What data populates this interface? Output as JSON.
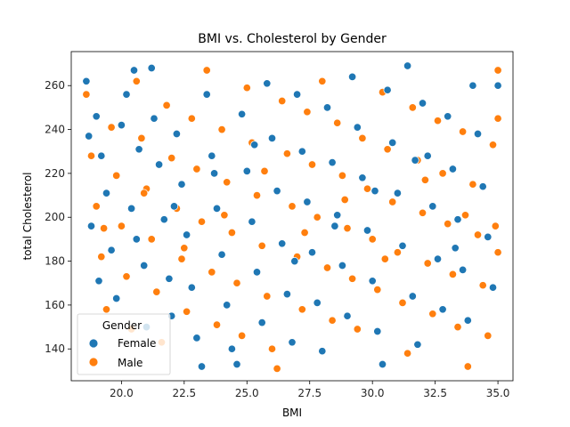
{
  "chart_data": {
    "type": "scatter",
    "title": "BMI vs. Cholesterol by Gender",
    "xlabel": "BMI",
    "ylabel": "total Cholesterol",
    "xlim": [
      18.0,
      35.6
    ],
    "ylim": [
      125.5,
      275.5
    ],
    "xticks": [
      20.0,
      22.5,
      25.0,
      27.5,
      30.0,
      32.5,
      35.0
    ],
    "xtick_labels": [
      "20.0",
      "22.5",
      "25.0",
      "27.5",
      "30.0",
      "32.5",
      "35.0"
    ],
    "yticks": [
      140,
      160,
      180,
      200,
      220,
      240,
      260
    ],
    "ytick_labels": [
      "140",
      "160",
      "180",
      "200",
      "220",
      "240",
      "260"
    ],
    "grid": false,
    "legend": {
      "title": "Gender",
      "position": "lower-left",
      "entries": [
        "Female",
        "Male"
      ]
    },
    "series": [
      {
        "name": "Female",
        "color": "#1f77b4",
        "points": [
          [
            18.6,
            262
          ],
          [
            18.7,
            237
          ],
          [
            18.8,
            196
          ],
          [
            19.0,
            246
          ],
          [
            19.2,
            228
          ],
          [
            19.4,
            211
          ],
          [
            19.6,
            185
          ],
          [
            19.8,
            163
          ],
          [
            20.0,
            242
          ],
          [
            20.2,
            256
          ],
          [
            20.4,
            204
          ],
          [
            20.5,
            267
          ],
          [
            20.7,
            231
          ],
          [
            20.9,
            178
          ],
          [
            21.0,
            150
          ],
          [
            21.2,
            268
          ],
          [
            21.3,
            245
          ],
          [
            21.5,
            224
          ],
          [
            21.7,
            199
          ],
          [
            21.9,
            172
          ],
          [
            22.0,
            155
          ],
          [
            22.2,
            238
          ],
          [
            22.4,
            215
          ],
          [
            22.6,
            192
          ],
          [
            22.8,
            168
          ],
          [
            23.0,
            145
          ],
          [
            23.2,
            132
          ],
          [
            23.4,
            256
          ],
          [
            23.6,
            228
          ],
          [
            23.8,
            204
          ],
          [
            24.0,
            183
          ],
          [
            24.2,
            160
          ],
          [
            24.4,
            140
          ],
          [
            24.6,
            133
          ],
          [
            24.8,
            247
          ],
          [
            25.0,
            221
          ],
          [
            25.2,
            198
          ],
          [
            25.4,
            175
          ],
          [
            25.6,
            152
          ],
          [
            25.8,
            261
          ],
          [
            26.0,
            236
          ],
          [
            26.2,
            212
          ],
          [
            26.4,
            188
          ],
          [
            26.6,
            165
          ],
          [
            26.8,
            143
          ],
          [
            27.0,
            256
          ],
          [
            27.2,
            230
          ],
          [
            27.4,
            207
          ],
          [
            27.6,
            184
          ],
          [
            27.8,
            161
          ],
          [
            28.0,
            139
          ],
          [
            28.2,
            250
          ],
          [
            28.4,
            225
          ],
          [
            28.6,
            201
          ],
          [
            28.8,
            178
          ],
          [
            29.0,
            155
          ],
          [
            29.2,
            264
          ],
          [
            29.4,
            241
          ],
          [
            29.6,
            218
          ],
          [
            29.8,
            194
          ],
          [
            30.0,
            171
          ],
          [
            30.2,
            148
          ],
          [
            30.4,
            133
          ],
          [
            30.6,
            258
          ],
          [
            30.8,
            234
          ],
          [
            31.0,
            211
          ],
          [
            31.2,
            187
          ],
          [
            31.4,
            269
          ],
          [
            31.6,
            164
          ],
          [
            31.8,
            142
          ],
          [
            32.0,
            252
          ],
          [
            32.2,
            228
          ],
          [
            32.4,
            205
          ],
          [
            32.6,
            181
          ],
          [
            32.8,
            158
          ],
          [
            33.0,
            246
          ],
          [
            33.2,
            222
          ],
          [
            33.4,
            199
          ],
          [
            33.6,
            176
          ],
          [
            33.8,
            153
          ],
          [
            34.0,
            260
          ],
          [
            34.2,
            238
          ],
          [
            34.4,
            214
          ],
          [
            34.6,
            191
          ],
          [
            34.8,
            168
          ],
          [
            35.0,
            260
          ],
          [
            19.1,
            171
          ],
          [
            20.6,
            190
          ],
          [
            22.1,
            205
          ],
          [
            23.7,
            220
          ],
          [
            25.3,
            233
          ],
          [
            26.9,
            180
          ],
          [
            28.5,
            196
          ],
          [
            30.1,
            212
          ],
          [
            31.7,
            226
          ],
          [
            33.3,
            186
          ]
        ]
      },
      {
        "name": "Male",
        "color": "#ff7f0e",
        "points": [
          [
            18.6,
            256
          ],
          [
            18.8,
            228
          ],
          [
            19.0,
            205
          ],
          [
            19.2,
            182
          ],
          [
            19.4,
            158
          ],
          [
            19.6,
            241
          ],
          [
            19.8,
            219
          ],
          [
            20.0,
            196
          ],
          [
            20.2,
            173
          ],
          [
            20.4,
            149
          ],
          [
            20.6,
            262
          ],
          [
            20.8,
            236
          ],
          [
            21.0,
            213
          ],
          [
            21.2,
            190
          ],
          [
            21.4,
            166
          ],
          [
            21.6,
            143
          ],
          [
            21.8,
            251
          ],
          [
            22.0,
            227
          ],
          [
            22.2,
            204
          ],
          [
            22.4,
            181
          ],
          [
            22.6,
            157
          ],
          [
            22.8,
            245
          ],
          [
            23.0,
            222
          ],
          [
            23.2,
            198
          ],
          [
            23.4,
            267
          ],
          [
            23.6,
            175
          ],
          [
            23.8,
            151
          ],
          [
            24.0,
            240
          ],
          [
            24.2,
            216
          ],
          [
            24.4,
            193
          ],
          [
            24.6,
            170
          ],
          [
            24.8,
            146
          ],
          [
            25.0,
            259
          ],
          [
            25.2,
            234
          ],
          [
            25.4,
            210
          ],
          [
            25.6,
            187
          ],
          [
            25.8,
            164
          ],
          [
            26.0,
            140
          ],
          [
            26.2,
            131
          ],
          [
            26.4,
            253
          ],
          [
            26.6,
            229
          ],
          [
            26.8,
            205
          ],
          [
            27.0,
            182
          ],
          [
            27.2,
            158
          ],
          [
            27.4,
            248
          ],
          [
            27.6,
            224
          ],
          [
            27.8,
            200
          ],
          [
            28.0,
            262
          ],
          [
            28.2,
            177
          ],
          [
            28.4,
            153
          ],
          [
            28.6,
            243
          ],
          [
            28.8,
            219
          ],
          [
            29.0,
            195
          ],
          [
            29.2,
            172
          ],
          [
            29.4,
            149
          ],
          [
            29.6,
            236
          ],
          [
            29.8,
            213
          ],
          [
            30.0,
            190
          ],
          [
            30.2,
            167
          ],
          [
            30.4,
            257
          ],
          [
            30.6,
            231
          ],
          [
            30.8,
            207
          ],
          [
            31.0,
            184
          ],
          [
            31.2,
            161
          ],
          [
            31.4,
            138
          ],
          [
            31.6,
            250
          ],
          [
            31.8,
            226
          ],
          [
            32.0,
            202
          ],
          [
            32.2,
            179
          ],
          [
            32.4,
            156
          ],
          [
            32.6,
            244
          ],
          [
            32.8,
            220
          ],
          [
            33.0,
            197
          ],
          [
            33.2,
            174
          ],
          [
            33.4,
            150
          ],
          [
            33.6,
            239
          ],
          [
            33.8,
            132
          ],
          [
            34.0,
            215
          ],
          [
            34.2,
            192
          ],
          [
            34.4,
            169
          ],
          [
            34.6,
            146
          ],
          [
            34.8,
            233
          ],
          [
            35.0,
            267
          ],
          [
            35.0,
            245
          ],
          [
            19.3,
            195
          ],
          [
            20.9,
            211
          ],
          [
            22.5,
            186
          ],
          [
            24.1,
            201
          ],
          [
            25.7,
            221
          ],
          [
            27.3,
            193
          ],
          [
            28.9,
            208
          ],
          [
            30.5,
            181
          ],
          [
            32.1,
            217
          ],
          [
            33.7,
            201
          ],
          [
            35.0,
            184
          ],
          [
            34.9,
            196
          ]
        ]
      }
    ]
  }
}
